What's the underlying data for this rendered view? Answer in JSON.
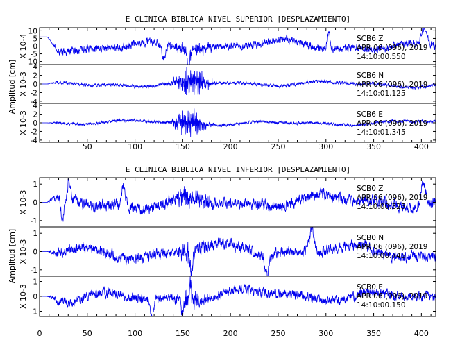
{
  "chart_data": [
    {
      "type": "line",
      "title": "E CLINICA BIBLICA NIVEL SUPERIOR [DESPLAZAMIENTO]",
      "ylabel": "Amplitud [cm]",
      "xlim": [
        0,
        415
      ],
      "x_ticks": [
        50,
        100,
        150,
        200,
        250,
        300,
        350,
        400
      ],
      "line_color": "#0000ee",
      "grid": false,
      "panels": [
        {
          "station": "SCB6",
          "component": "Z",
          "date": "APR 06 (096), 2019",
          "time": "14:10:00.550",
          "scale_label": "X 10-4",
          "ylim": [
            -12,
            12
          ],
          "y_ticks": [
            10,
            5,
            0,
            -5,
            -10
          ],
          "y_tick_labels": [
            "10",
            "5",
            "0",
            "-5",
            "-10"
          ],
          "trace": {
            "seed": 11,
            "baseline": 0,
            "start_level": 6,
            "slow_amp": 4,
            "noise_amp": 2.4,
            "burst_center": 160,
            "burst_width": 14,
            "burst_amp": 4,
            "features": [
              {
                "x": 130,
                "y": -10,
                "w": 2
              },
              {
                "x": 156,
                "y": -12,
                "w": 1.5
              },
              {
                "x": 303,
                "y": 10.5,
                "w": 1.5
              },
              {
                "x": 403,
                "y": 10,
                "w": 2.5
              }
            ]
          }
        },
        {
          "station": "SCB6",
          "component": "N",
          "date": "APR 06 (096), 2019",
          "time": "14:10:01.125",
          "scale_label": "X 10-3",
          "ylim": [
            -4.5,
            4.5
          ],
          "y_ticks": [
            4,
            2,
            0,
            -2,
            -4
          ],
          "y_tick_labels": [
            "4",
            "2",
            "0",
            "-2",
            "-4"
          ],
          "trace": {
            "seed": 23,
            "baseline": 0,
            "start_level": 0,
            "slow_amp": 0.8,
            "noise_amp": 0.35,
            "burst_center": 160,
            "burst_width": 12,
            "burst_amp": 4.2,
            "features": []
          }
        },
        {
          "station": "SCB6",
          "component": "E",
          "date": "APR 06 (096), 2019",
          "time": "14:10:01.345",
          "scale_label": "X 10-3",
          "ylim": [
            -4.5,
            4.5
          ],
          "y_ticks": [
            4,
            2,
            0,
            -2,
            -4
          ],
          "y_tick_labels": [
            "4",
            "2",
            "0",
            "-2",
            "-4"
          ],
          "trace": {
            "seed": 37,
            "baseline": 0,
            "start_level": 0,
            "slow_amp": 0.6,
            "noise_amp": 0.3,
            "burst_center": 157,
            "burst_width": 11,
            "burst_amp": 4.3,
            "features": []
          }
        }
      ]
    },
    {
      "type": "line",
      "title": "E CLINICA BIBLICA NIVEL INFERIOR [DESPLAZAMIENTO]",
      "ylabel": "Amplitud [cm]",
      "xlim": [
        0,
        415
      ],
      "x_ticks": [
        0,
        50,
        100,
        150,
        200,
        250,
        300,
        350,
        400
      ],
      "line_color": "#0000ee",
      "grid": false,
      "panels": [
        {
          "station": "SCB0",
          "component": "Z",
          "date": "APR 06 (096), 2019",
          "time": "14:10:00.325",
          "scale_label": "X 10-3",
          "ylim": [
            -1.35,
            1.35
          ],
          "y_ticks": [
            1,
            0,
            -1
          ],
          "y_tick_labels": [
            "1",
            "0",
            "-1"
          ],
          "trace": {
            "seed": 51,
            "baseline": 0,
            "start_level": 0,
            "slow_amp": 0.45,
            "noise_amp": 0.28,
            "burst_center": 160,
            "burst_width": 14,
            "burst_amp": 0.6,
            "features": [
              {
                "x": 24,
                "y": -1.3,
                "w": 1.5
              },
              {
                "x": 31,
                "y": 1.1,
                "w": 1.5
              },
              {
                "x": 88,
                "y": 1.1,
                "w": 2
              },
              {
                "x": 402,
                "y": 1.3,
                "w": 2.5
              }
            ]
          }
        },
        {
          "station": "SCB0",
          "component": "N",
          "date": "APR 06 (096), 2019",
          "time": "14:10:00.745",
          "scale_label": "X 10-3",
          "ylim": [
            -1.35,
            1.35
          ],
          "y_ticks": [
            1,
            0,
            -1
          ],
          "y_tick_labels": [
            "1",
            "0",
            "-1"
          ],
          "trace": {
            "seed": 67,
            "baseline": 0,
            "start_level": 0,
            "slow_amp": 0.45,
            "noise_amp": 0.28,
            "burst_center": 160,
            "burst_width": 14,
            "burst_amp": 0.55,
            "features": [
              {
                "x": 159,
                "y": -1.25,
                "w": 1.5
              },
              {
                "x": 238,
                "y": -1.15,
                "w": 2
              },
              {
                "x": 285,
                "y": 1.2,
                "w": 2.5
              }
            ]
          }
        },
        {
          "station": "SCB0",
          "component": "E",
          "date": "APR 06 (096), 2019",
          "time": "14:10:00.150",
          "scale_label": "X 10-3",
          "ylim": [
            -1.35,
            1.35
          ],
          "y_ticks": [
            1,
            0,
            -1
          ],
          "y_tick_labels": [
            "1",
            "0",
            "-1"
          ],
          "trace": {
            "seed": 83,
            "baseline": 0,
            "start_level": 0,
            "slow_amp": 0.5,
            "noise_amp": 0.3,
            "burst_center": 158,
            "burst_width": 12,
            "burst_amp": 0.7,
            "features": [
              {
                "x": 118,
                "y": -1.25,
                "w": 1.5
              },
              {
                "x": 150,
                "y": -1.2,
                "w": 1
              },
              {
                "x": 158,
                "y": 1.15,
                "w": 1
              }
            ]
          }
        }
      ]
    }
  ]
}
